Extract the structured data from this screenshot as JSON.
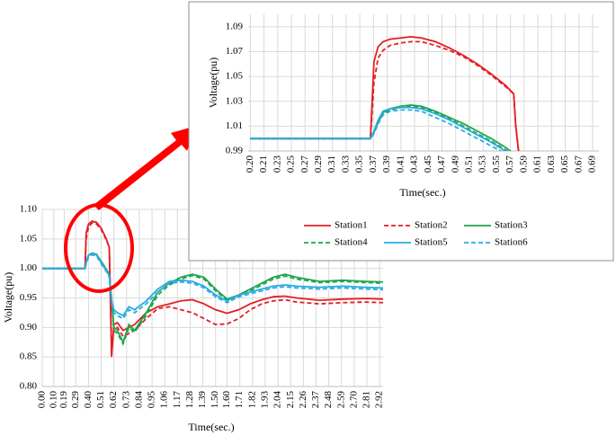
{
  "chart_data": [
    {
      "type": "line",
      "xlabel": "Time(sec.)",
      "ylabel": "Voltage(pu)",
      "xlim": [
        0,
        2.95
      ],
      "ylim": [
        0.8,
        1.1
      ],
      "grid": true,
      "xticks": [
        {
          "value": 0,
          "label": "0.00"
        },
        {
          "value": 0.1,
          "label": "0.10"
        },
        0.19,
        0.29,
        {
          "value": 0.4,
          "label": "0.40"
        },
        0.51,
        0.62,
        0.73,
        0.84,
        0.95,
        1.06,
        1.17,
        1.28,
        1.39,
        {
          "value": 1.5,
          "label": "1.50"
        },
        {
          "value": 1.6,
          "label": "1.60"
        },
        1.71,
        1.82,
        1.93,
        2.04,
        2.15,
        2.26,
        2.37,
        2.48,
        2.59,
        {
          "value": 2.7,
          "label": "2.70"
        },
        2.81,
        2.92
      ],
      "yticks": [
        {
          "value": 0.8,
          "label": "0.80"
        },
        0.85,
        {
          "value": 0.9,
          "label": "0.90"
        },
        0.95,
        {
          "value": 1,
          "label": "1.00"
        },
        1.05,
        {
          "value": 1.1,
          "label": "1.10"
        }
      ],
      "x": [
        0,
        0.1,
        0.2,
        0.3,
        0.37,
        0.38,
        0.4,
        0.43,
        0.47,
        0.51,
        0.55,
        0.58,
        0.6,
        0.62,
        0.65,
        0.7,
        0.75,
        0.8,
        0.9,
        1.0,
        1.1,
        1.2,
        1.3,
        1.4,
        1.5,
        1.6,
        1.7,
        1.8,
        1.9,
        2.0,
        2.1,
        2.2,
        2.4,
        2.6,
        2.8,
        2.95
      ],
      "series": [
        {
          "color": "#e31e24",
          "dash": false,
          "values": [
            1,
            1,
            1,
            1,
            1,
            1.06,
            1.075,
            1.08,
            1.078,
            1.068,
            1.052,
            1.036,
            0.85,
            0.905,
            0.908,
            0.895,
            0.9,
            0.905,
            0.925,
            0.935,
            0.94,
            0.945,
            0.947,
            0.94,
            0.93,
            0.924,
            0.93,
            0.94,
            0.947,
            0.952,
            0.953,
            0.95,
            0.946,
            0.948,
            0.949,
            0.948
          ]
        },
        {
          "color": "#e31e24",
          "dash": true,
          "values": [
            1,
            1,
            1,
            1,
            1,
            1.05,
            1.07,
            1.077,
            1.075,
            1.066,
            1.05,
            1.036,
            0.87,
            0.895,
            0.9,
            0.885,
            0.89,
            0.895,
            0.915,
            0.932,
            0.935,
            0.93,
            0.925,
            0.915,
            0.905,
            0.906,
            0.915,
            0.93,
            0.94,
            0.945,
            0.947,
            0.943,
            0.94,
            0.942,
            0.943,
            0.942
          ]
        },
        {
          "color": "#1ea64b",
          "dash": false,
          "values": [
            1,
            1,
            1,
            1,
            1,
            1.01,
            1.022,
            1.026,
            1.024,
            1.012,
            1.0,
            0.99,
            0.95,
            0.9,
            0.895,
            0.875,
            0.905,
            0.895,
            0.925,
            0.96,
            0.975,
            0.985,
            0.99,
            0.985,
            0.965,
            0.948,
            0.955,
            0.965,
            0.975,
            0.985,
            0.99,
            0.985,
            0.978,
            0.98,
            0.978,
            0.977
          ]
        },
        {
          "color": "#1ea64b",
          "dash": true,
          "values": [
            1,
            1,
            1,
            1,
            1,
            1.008,
            1.02,
            1.025,
            1.023,
            1.01,
            0.998,
            0.988,
            0.945,
            0.895,
            0.89,
            0.872,
            0.9,
            0.892,
            0.92,
            0.955,
            0.972,
            0.982,
            0.988,
            0.982,
            0.962,
            0.946,
            0.952,
            0.962,
            0.972,
            0.982,
            0.987,
            0.982,
            0.976,
            0.978,
            0.976,
            0.975
          ]
        },
        {
          "color": "#29abe2",
          "dash": false,
          "values": [
            1,
            1,
            1,
            1,
            1,
            1.012,
            1.023,
            1.025,
            1.023,
            1.01,
            0.998,
            0.988,
            0.945,
            0.93,
            0.925,
            0.92,
            0.935,
            0.93,
            0.945,
            0.965,
            0.978,
            0.98,
            0.978,
            0.97,
            0.955,
            0.945,
            0.955,
            0.96,
            0.965,
            0.97,
            0.972,
            0.97,
            0.968,
            0.97,
            0.968,
            0.967
          ]
        },
        {
          "color": "#29abe2",
          "dash": true,
          "values": [
            1,
            1,
            1,
            1,
            1,
            1.008,
            1.02,
            1.023,
            1.021,
            1.008,
            0.996,
            0.986,
            0.94,
            0.925,
            0.92,
            0.915,
            0.93,
            0.925,
            0.94,
            0.96,
            0.975,
            0.977,
            0.975,
            0.967,
            0.952,
            0.942,
            0.952,
            0.957,
            0.962,
            0.967,
            0.969,
            0.967,
            0.965,
            0.967,
            0.965,
            0.964
          ]
        }
      ]
    },
    {
      "type": "line",
      "xlabel": "Time(sec.)",
      "ylabel": "Voltage(pu)",
      "xlim": [
        0.192,
        0.694
      ],
      "ylim": [
        0.99,
        1.1
      ],
      "grid": true,
      "legend": "bottom",
      "xticks": [
        {
          "value": 0.195,
          "label": "0.20"
        },
        {
          "value": 0.2146,
          "label": "0.21"
        },
        {
          "value": 0.2342,
          "label": "0.23"
        },
        {
          "value": 0.2538,
          "label": "0.25"
        },
        {
          "value": 0.2734,
          "label": "0.27"
        },
        {
          "value": 0.293,
          "label": "0.29"
        },
        {
          "value": 0.3126,
          "label": "0.31"
        },
        {
          "value": 0.3322,
          "label": "0.33"
        },
        {
          "value": 0.3518,
          "label": "0.35"
        },
        {
          "value": 0.3714,
          "label": "0.37"
        },
        {
          "value": 0.391,
          "label": "0.39"
        },
        {
          "value": 0.4106,
          "label": "0.41"
        },
        {
          "value": 0.4302,
          "label": "0.43"
        },
        {
          "value": 0.4498,
          "label": "0.45"
        },
        {
          "value": 0.4694,
          "label": "0.47"
        },
        {
          "value": 0.489,
          "label": "0.49"
        },
        {
          "value": 0.5086,
          "label": "0.51"
        },
        {
          "value": 0.5282,
          "label": "0.53"
        },
        {
          "value": 0.5478,
          "label": "0.55"
        },
        {
          "value": 0.5674,
          "label": "0.57"
        },
        {
          "value": 0.587,
          "label": "0.59"
        },
        {
          "value": 0.6066,
          "label": "0.61"
        },
        {
          "value": 0.6262,
          "label": "0.63"
        },
        {
          "value": 0.6458,
          "label": "0.65"
        },
        {
          "value": 0.6654,
          "label": "0.67"
        },
        {
          "value": 0.685,
          "label": "0.69"
        }
      ],
      "yticks": [
        0.99,
        1.01,
        1.03,
        1.05,
        1.07,
        1.09
      ],
      "x": [
        0.195,
        0.367,
        0.372,
        0.378,
        0.385,
        0.395,
        0.41,
        0.425,
        0.44,
        0.46,
        0.48,
        0.5,
        0.52,
        0.54,
        0.56,
        0.572,
        0.575,
        0.58
      ],
      "series": [
        {
          "name": "Station1",
          "color": "#e31e24",
          "dash": false,
          "values": [
            1,
            1,
            1.062,
            1.074,
            1.078,
            1.08,
            1.081,
            1.082,
            1.081,
            1.078,
            1.073,
            1.067,
            1.06,
            1.052,
            1.043,
            1.036,
            1.01,
            0.985
          ]
        },
        {
          "name": "Station2",
          "color": "#e31e24",
          "dash": true,
          "values": [
            1,
            1,
            1.045,
            1.065,
            1.071,
            1.075,
            1.077,
            1.078,
            1.078,
            1.075,
            1.071,
            1.066,
            1.059,
            1.051,
            1.042,
            1.036,
            1.01,
            0.985
          ]
        },
        {
          "name": "Station3",
          "color": "#1ea64b",
          "dash": false,
          "values": [
            1,
            1,
            1.005,
            1.013,
            1.021,
            1.024,
            1.026,
            1.027,
            1.026,
            1.022,
            1.017,
            1.012,
            1.006,
            1.0,
            0.993,
            0.988,
            null,
            null
          ]
        },
        {
          "name": "Station4",
          "color": "#1ea64b",
          "dash": true,
          "values": [
            1,
            1,
            1.004,
            1.012,
            1.02,
            1.023,
            1.025,
            1.026,
            1.025,
            1.021,
            1.016,
            1.01,
            1.004,
            0.998,
            0.991,
            0.986,
            null,
            null
          ]
        },
        {
          "name": "Station5",
          "color": "#29abe2",
          "dash": false,
          "values": [
            1,
            1,
            1.006,
            1.015,
            1.022,
            1.024,
            1.025,
            1.025,
            1.024,
            1.02,
            1.015,
            1.009,
            1.003,
            0.997,
            0.99,
            0.985,
            null,
            null
          ]
        },
        {
          "name": "Station6",
          "color": "#29abe2",
          "dash": true,
          "values": [
            1,
            1,
            1.004,
            1.012,
            1.019,
            1.022,
            1.023,
            1.023,
            1.022,
            1.017,
            1.012,
            1.006,
            1.0,
            0.994,
            0.988,
            0.984,
            null,
            null
          ]
        }
      ]
    }
  ]
}
